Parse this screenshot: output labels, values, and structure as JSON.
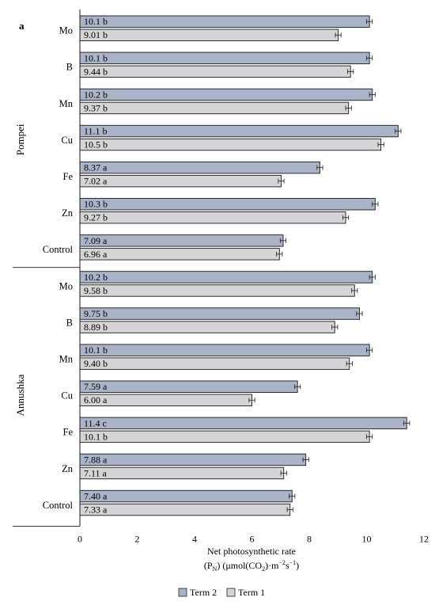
{
  "chart_data": {
    "type": "bar",
    "orientation": "horizontal",
    "panel_label": "a",
    "xlabel_line1": "Net photosynthetic rate",
    "xlabel_line2_parts": {
      "a": "(P",
      "sub_n": "N",
      "b": ") (μmol(CO",
      "sub_2": "2",
      "c": ")·m",
      "sup": "−2",
      "d": "s",
      "sup2": "−1",
      "e": ")"
    },
    "xlim": [
      0,
      12
    ],
    "xticks": [
      "0",
      "2",
      "4",
      "6",
      "8",
      "10",
      "12"
    ],
    "groups": [
      {
        "name": "Pompei",
        "categories": [
          "Mo",
          "B",
          "Mn",
          "Cu",
          "Fe",
          "Zn",
          "Control"
        ],
        "series": [
          {
            "name": "Term 2",
            "values": [
              10.1,
              10.1,
              10.2,
              11.1,
              8.37,
              10.3,
              7.09
            ],
            "labels": [
              "10.1 b",
              "10.1 b",
              "10.2 b",
              "11.1 b",
              "8.37 a",
              "10.3 b",
              "7.09 a"
            ]
          },
          {
            "name": "Term 1",
            "values": [
              9.01,
              9.44,
              9.37,
              10.5,
              7.02,
              9.27,
              6.96
            ],
            "labels": [
              "9.01 b",
              "9.44 b",
              "9.37 b",
              "10.5 b",
              "7.02 a",
              "9.27 b",
              "6.96 a"
            ]
          }
        ]
      },
      {
        "name": "Annushka",
        "categories": [
          "Mo",
          "B",
          "Mn",
          "Cu",
          "Fe",
          "Zn",
          "Control"
        ],
        "series": [
          {
            "name": "Term 2",
            "values": [
              10.2,
              9.75,
              10.1,
              7.59,
              11.4,
              7.88,
              7.4
            ],
            "labels": [
              "10.2 b",
              "9.75 b",
              "10.1 b",
              "7.59 a",
              "11.4 c",
              "7.88 a",
              "7.40 a"
            ]
          },
          {
            "name": "Term 1",
            "values": [
              9.58,
              8.89,
              9.4,
              6.0,
              10.1,
              7.11,
              7.33
            ],
            "labels": [
              "9.58 b",
              "8.89 b",
              "9.40 b",
              "6.00 a",
              "10.1 b",
              "7.11 a",
              "7.33 a"
            ]
          }
        ]
      }
    ],
    "error_bar": 0.1,
    "legend": [
      "Term 2",
      "Term 1"
    ],
    "legend_position": "bottom",
    "colors": {
      "Term 2": "#aab4c8",
      "Term 1": "#d5d5d7"
    },
    "grid": false
  }
}
